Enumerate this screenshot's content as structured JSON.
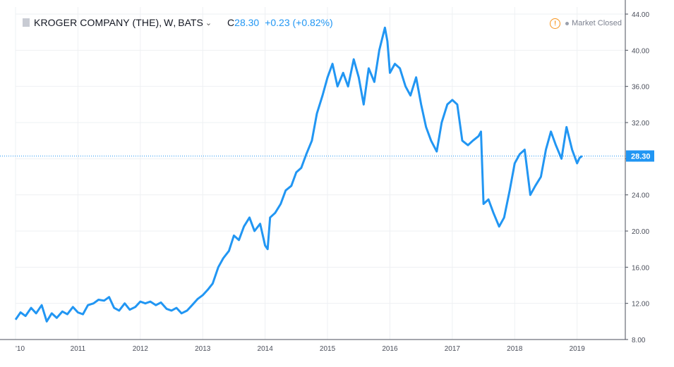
{
  "header": {
    "symbol_name": "KROGER COMPANY (THE)",
    "interval": "W",
    "exchange": "BATS",
    "close_label": "C",
    "close_value": "28.30",
    "change": "+0.23 (+0.82%)",
    "status_text": "Market Closed",
    "colors": {
      "accent": "#2196f3",
      "warning": "#f7931a"
    }
  },
  "chart_data": {
    "type": "line",
    "xlabel": "",
    "ylabel": "",
    "ylim": [
      8,
      44
    ],
    "xlim": [
      2010.0,
      2019.75
    ],
    "y_ticks": [
      "44.00",
      "40.00",
      "36.00",
      "32.00",
      "28.00",
      "24.00",
      "20.00",
      "16.00",
      "12.00",
      "8.00"
    ],
    "x_ticks": [
      "'10",
      "2011",
      "2012",
      "2013",
      "2014",
      "2015",
      "2016",
      "2017",
      "2018",
      "2019"
    ],
    "last_price_label": "28.30",
    "last_price": 28.3,
    "grid": true,
    "line_color": "#2196f3",
    "series": [
      {
        "x": [
          2010.0,
          2010.08,
          2010.16,
          2010.25,
          2010.33,
          2010.42,
          2010.5,
          2010.58,
          2010.66,
          2010.75,
          2010.83,
          2010.92,
          2011.0,
          2011.08,
          2011.16,
          2011.25,
          2011.33,
          2011.42,
          2011.5,
          2011.58,
          2011.66,
          2011.75,
          2011.83,
          2011.92,
          2012.0,
          2012.08,
          2012.16,
          2012.25,
          2012.33,
          2012.42,
          2012.5,
          2012.58,
          2012.66,
          2012.75,
          2012.83,
          2012.92,
          2013.0,
          2013.08,
          2013.16,
          2013.25,
          2013.33,
          2013.42,
          2013.5,
          2013.58,
          2013.66,
          2013.75,
          2013.83,
          2013.92,
          2014.0,
          2014.04,
          2014.08,
          2014.16,
          2014.25,
          2014.33,
          2014.42,
          2014.5,
          2014.58,
          2014.66,
          2014.75,
          2014.83,
          2014.92,
          2015.0,
          2015.08,
          2015.16,
          2015.25,
          2015.33,
          2015.42,
          2015.5,
          2015.58,
          2015.66,
          2015.75,
          2015.83,
          2015.92,
          2015.96,
          2016.0,
          2016.08,
          2016.16,
          2016.25,
          2016.33,
          2016.42,
          2016.5,
          2016.58,
          2016.66,
          2016.75,
          2016.83,
          2016.92,
          2017.0,
          2017.08,
          2017.16,
          2017.25,
          2017.33,
          2017.42,
          2017.46,
          2017.5,
          2017.58,
          2017.66,
          2017.75,
          2017.83,
          2017.92,
          2018.0,
          2018.08,
          2018.16,
          2018.25,
          2018.33,
          2018.42,
          2018.5,
          2018.58,
          2018.66,
          2018.75,
          2018.83,
          2018.92,
          2019.0,
          2019.04,
          2019.08
        ],
        "values": [
          10.2,
          11.0,
          10.6,
          11.5,
          10.9,
          11.8,
          10.0,
          10.9,
          10.4,
          11.1,
          10.8,
          11.6,
          11.0,
          10.8,
          11.8,
          12.0,
          12.4,
          12.3,
          12.7,
          11.5,
          11.2,
          12.0,
          11.3,
          11.6,
          12.2,
          12.0,
          12.2,
          11.8,
          12.1,
          11.4,
          11.2,
          11.5,
          10.9,
          11.2,
          11.8,
          12.5,
          12.9,
          13.5,
          14.2,
          16.0,
          17.0,
          17.8,
          19.5,
          19.0,
          20.5,
          21.5,
          20.0,
          20.8,
          18.4,
          18.0,
          21.5,
          22.0,
          23.0,
          24.5,
          25.0,
          26.5,
          27.0,
          28.5,
          30.0,
          33.0,
          35.0,
          37.0,
          38.5,
          36.0,
          37.5,
          36.0,
          39.0,
          37.0,
          34.0,
          38.0,
          36.5,
          40.0,
          42.5,
          41.0,
          37.5,
          38.5,
          38.0,
          36.0,
          35.0,
          37.0,
          34.0,
          31.5,
          30.0,
          28.8,
          32.0,
          34.0,
          34.5,
          34.0,
          30.0,
          29.5,
          30.0,
          30.5,
          31.0,
          23.0,
          23.5,
          22.0,
          20.5,
          21.5,
          24.5,
          27.5,
          28.5,
          29.0,
          24.0,
          25.0,
          26.0,
          29.0,
          31.0,
          29.5,
          28.0,
          31.5,
          29.0,
          27.5,
          28.1,
          28.3
        ]
      }
    ]
  }
}
